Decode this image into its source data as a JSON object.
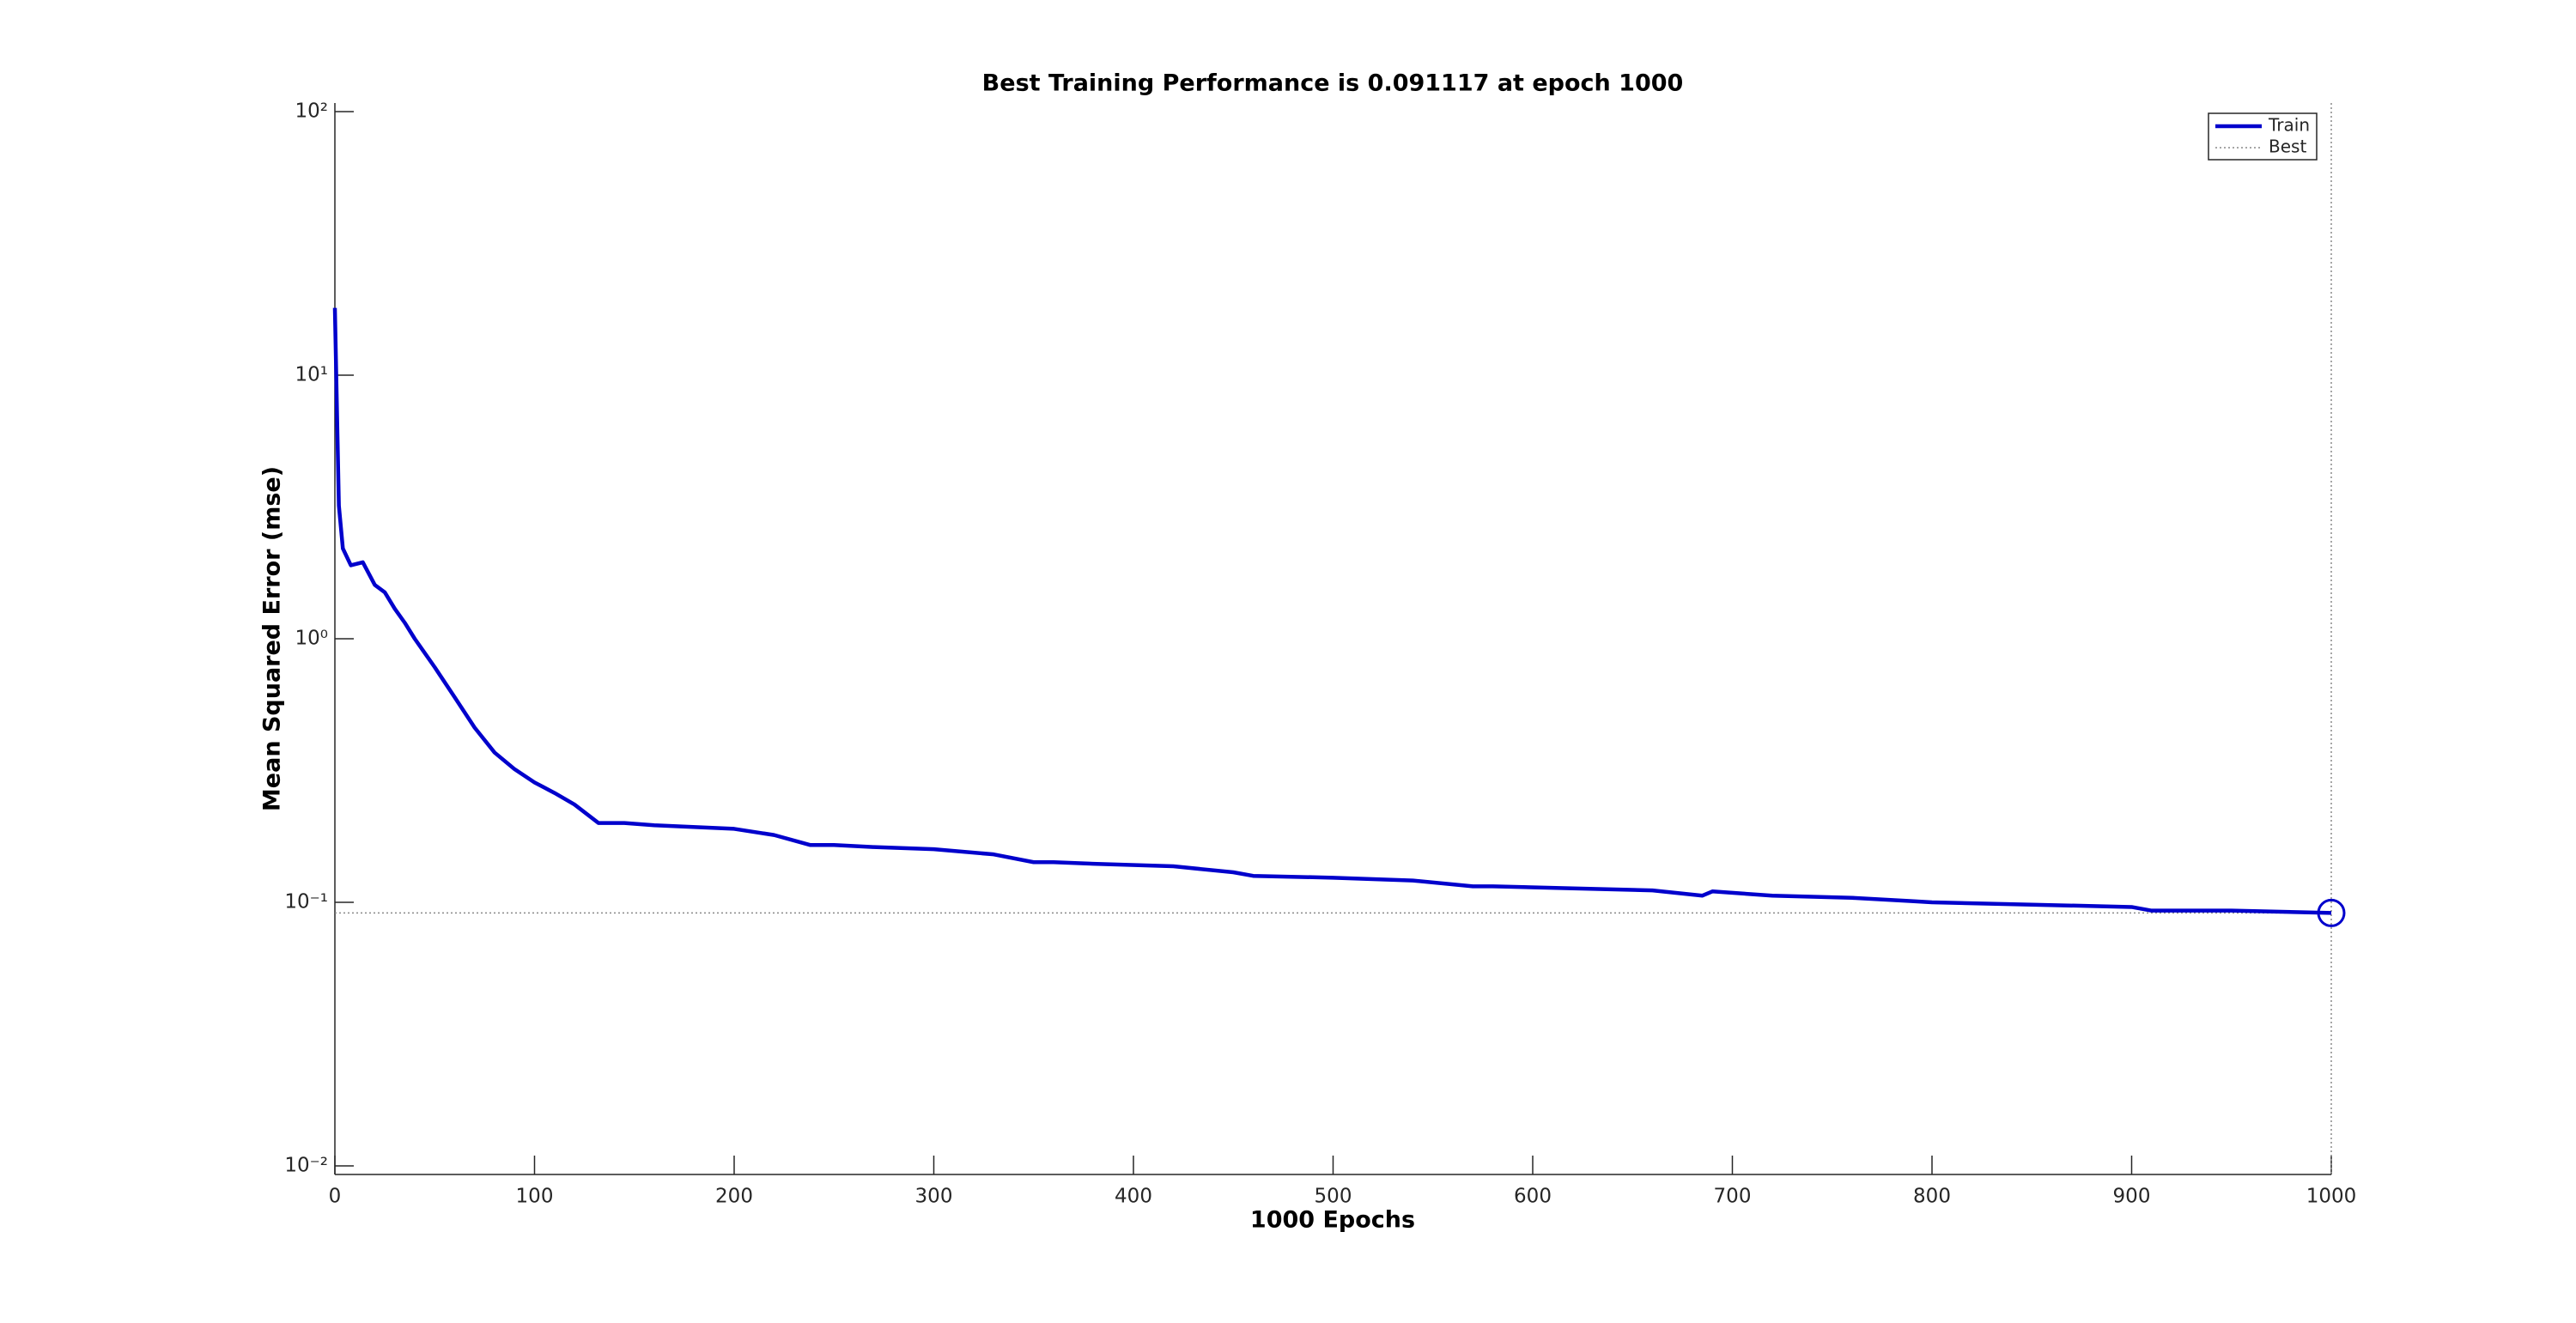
{
  "chart_data": {
    "type": "line",
    "title": "Best Training Performance is 0.091117 at epoch 1000",
    "xlabel": "1000 Epochs",
    "ylabel": "Mean Squared Error  (mse)",
    "yscale": "log",
    "xlim": [
      0,
      1000
    ],
    "ylim": [
      0.01,
      100
    ],
    "xticks": [
      0,
      100,
      200,
      300,
      400,
      500,
      600,
      700,
      800,
      900,
      1000
    ],
    "yticks": [
      {
        "value": 0.01,
        "label": "10⁻²"
      },
      {
        "value": 0.1,
        "label": "10⁻¹"
      },
      {
        "value": 1,
        "label": "10⁰"
      },
      {
        "value": 10,
        "label": "10¹"
      },
      {
        "value": 100,
        "label": "10²"
      }
    ],
    "legend": "upper right",
    "x": [
      0,
      2,
      4,
      8,
      14,
      20,
      25,
      30,
      35,
      40,
      50,
      60,
      70,
      80,
      90,
      100,
      110,
      120,
      132,
      145,
      160,
      200,
      220,
      238,
      250,
      270,
      300,
      330,
      350,
      360,
      380,
      420,
      450,
      460,
      500,
      540,
      570,
      580,
      620,
      660,
      685,
      690,
      720,
      760,
      790,
      800,
      850,
      900,
      910,
      950,
      1000
    ],
    "series": [
      {
        "name": "Train",
        "color": "#0000cc",
        "values": [
          18,
          3.2,
          2.2,
          1.9,
          1.95,
          1.6,
          1.5,
          1.3,
          1.15,
          1.0,
          0.78,
          0.6,
          0.46,
          0.37,
          0.32,
          0.285,
          0.26,
          0.235,
          0.2,
          0.2,
          0.196,
          0.19,
          0.18,
          0.165,
          0.165,
          0.162,
          0.159,
          0.152,
          0.142,
          0.142,
          0.14,
          0.137,
          0.13,
          0.126,
          0.124,
          0.121,
          0.115,
          0.115,
          0.113,
          0.111,
          0.106,
          0.11,
          0.106,
          0.104,
          0.101,
          0.1,
          0.098,
          0.096,
          0.093,
          0.093,
          0.091117
        ]
      }
    ],
    "best": {
      "name": "Best",
      "x": 1000,
      "y": 0.091117,
      "color": "#888888"
    }
  }
}
